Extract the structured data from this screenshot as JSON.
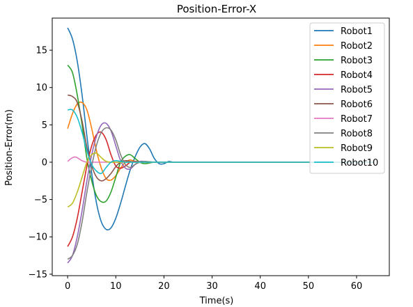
{
  "chart_data": {
    "type": "line",
    "title": "Position-Error-X",
    "xlabel": "Time(s)",
    "ylabel": "Position-Error(m)",
    "xlim": [
      -3.2,
      66.8
    ],
    "ylim": [
      -15.2,
      19.3
    ],
    "xticks": [
      0,
      10,
      20,
      30,
      40,
      50,
      60
    ],
    "yticks": [
      -15,
      -10,
      -5,
      0,
      5,
      10,
      15
    ],
    "x_tick_labels": [
      "0",
      "10",
      "20",
      "30",
      "40",
      "50",
      "60"
    ],
    "y_tick_labels": [
      "−15",
      "−10",
      "−5",
      "0",
      "5",
      "10",
      "15"
    ],
    "grid": false,
    "legend_position": "top-right",
    "series": [
      {
        "name": "Robot1",
        "color": "#1f77b4",
        "x": [
          0,
          1,
          2,
          3,
          4,
          5,
          6,
          7,
          8,
          9,
          10,
          11,
          12,
          13,
          14,
          15,
          16,
          17,
          18,
          19,
          20,
          21,
          22,
          24,
          26,
          30,
          40,
          50,
          63.5
        ],
        "y": [
          18,
          16.5,
          13.5,
          9,
          3.5,
          -1.5,
          -5.5,
          -8,
          -9,
          -8.8,
          -7.5,
          -5.5,
          -3.2,
          -1,
          0.7,
          2,
          2.5,
          1.8,
          0.5,
          -0.2,
          -0.2,
          0.1,
          0,
          0,
          0,
          0,
          0,
          0,
          0
        ]
      },
      {
        "name": "Robot2",
        "color": "#ff7f0e",
        "x": [
          0,
          1,
          2,
          3,
          4,
          5,
          6,
          7,
          8,
          9,
          10,
          11,
          12,
          13,
          14,
          16,
          18,
          20,
          25,
          30,
          40,
          50,
          63.5
        ],
        "y": [
          4.5,
          6.5,
          7.8,
          8,
          7,
          4.5,
          1.5,
          -0.8,
          -2.2,
          -2.4,
          -1.8,
          -0.8,
          0,
          0.3,
          0.1,
          0,
          0,
          0,
          0,
          0,
          0,
          0,
          0
        ]
      },
      {
        "name": "Robot3",
        "color": "#2ca02c",
        "x": [
          0,
          1,
          2,
          3,
          4,
          5,
          6,
          7,
          8,
          9,
          10,
          11,
          12,
          13,
          14,
          15,
          16,
          18,
          20,
          25,
          30,
          40,
          50,
          63.5
        ],
        "y": [
          13,
          12,
          9,
          5,
          0.5,
          -2.5,
          -4.5,
          -5.3,
          -5.2,
          -4,
          -2,
          0,
          0.8,
          1,
          0.5,
          0,
          -0.2,
          0,
          0,
          0,
          0,
          0,
          0,
          0
        ]
      },
      {
        "name": "Robot4",
        "color": "#d62728",
        "x": [
          0,
          1,
          2,
          3,
          4,
          5,
          6,
          7,
          8,
          9,
          10,
          11,
          12,
          13,
          14,
          16,
          18,
          20,
          25,
          30,
          40,
          50,
          63.5
        ],
        "y": [
          -11.3,
          -10,
          -7.5,
          -4,
          -0.5,
          2.2,
          3.7,
          4,
          3,
          1,
          -0.5,
          -0.8,
          -0.5,
          0,
          0.1,
          0,
          0,
          0,
          0,
          0,
          0,
          0,
          0
        ]
      },
      {
        "name": "Robot5",
        "color": "#9467bd",
        "x": [
          0,
          1,
          2,
          3,
          4,
          5,
          6,
          7,
          8,
          9,
          10,
          11,
          12,
          13,
          14,
          15,
          16,
          18,
          20,
          25,
          30,
          40,
          50,
          63.5
        ],
        "y": [
          -13.5,
          -12.5,
          -10,
          -6.5,
          -2.5,
          1,
          3.5,
          5,
          5.2,
          4.2,
          2.2,
          0.2,
          -0.8,
          -0.9,
          -0.3,
          0.1,
          0.1,
          0,
          0,
          0,
          0,
          0,
          0,
          0
        ]
      },
      {
        "name": "Robot6",
        "color": "#8c564b",
        "x": [
          0,
          1,
          2,
          3,
          4,
          5,
          6,
          7,
          8,
          9,
          10,
          11,
          12,
          13,
          14,
          16,
          18,
          20,
          25,
          30,
          40,
          50,
          63.5
        ],
        "y": [
          9,
          8.8,
          8,
          5.5,
          2,
          -0.5,
          -2,
          -2.5,
          -2.2,
          -1.5,
          -0.6,
          0,
          0.2,
          0.1,
          0,
          0,
          0,
          0,
          0,
          0,
          0,
          0,
          0
        ]
      },
      {
        "name": "Robot7",
        "color": "#e377c2",
        "x": [
          0,
          0.5,
          1,
          1.5,
          2,
          3,
          4,
          5,
          6,
          7,
          8,
          10,
          12,
          15,
          20,
          30,
          40,
          50,
          63.5
        ],
        "y": [
          0.1,
          0.4,
          0.6,
          0.7,
          0.6,
          0.2,
          0,
          0,
          0,
          0,
          0,
          0,
          0,
          0,
          0,
          0,
          0,
          0,
          0
        ]
      },
      {
        "name": "Robot8",
        "color": "#7f7f7f",
        "x": [
          0,
          1,
          2,
          3,
          4,
          5,
          6,
          7,
          8,
          9,
          10,
          11,
          12,
          13,
          14,
          15,
          16,
          18,
          20,
          25,
          30,
          40,
          50,
          63.5
        ],
        "y": [
          -13,
          -12.5,
          -11,
          -8,
          -4,
          -0.5,
          2.3,
          4,
          4.6,
          4.3,
          3,
          1,
          -0.3,
          -0.7,
          -0.3,
          0,
          0.1,
          0,
          0,
          0,
          0,
          0,
          0,
          0
        ]
      },
      {
        "name": "Robot9",
        "color": "#bcbd22",
        "x": [
          0,
          1,
          2,
          3,
          4,
          5,
          6,
          7,
          8,
          9,
          10,
          12,
          15,
          20,
          30,
          40,
          50,
          63.5
        ],
        "y": [
          -6,
          -5.5,
          -4,
          -2,
          0,
          1,
          1.2,
          0.6,
          0.1,
          0,
          0,
          0,
          0,
          0,
          0,
          0,
          0,
          0
        ]
      },
      {
        "name": "Robot10",
        "color": "#17becf",
        "x": [
          0,
          1,
          2,
          3,
          4,
          5,
          6,
          7,
          8,
          9,
          10,
          11,
          12,
          13,
          15,
          18,
          20,
          25,
          30,
          40,
          50,
          63.5
        ],
        "y": [
          7,
          7,
          6,
          4,
          1.5,
          -0.3,
          -1.2,
          -1.5,
          -0.7,
          0,
          0.2,
          0.1,
          0,
          0,
          0,
          0,
          0,
          0,
          0,
          0,
          0,
          0
        ]
      }
    ]
  }
}
